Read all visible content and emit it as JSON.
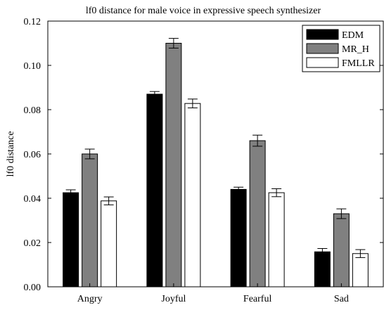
{
  "chart_data": {
    "type": "bar",
    "title": "lf0 distance for male voice in expressive speech synthesizer",
    "xlabel": "",
    "ylabel": "lf0 distance",
    "categories": [
      "Angry",
      "Joyful",
      "Fearful",
      "Sad"
    ],
    "ylim": [
      0,
      0.12
    ],
    "yticks": [
      "0.00",
      "0.02",
      "0.04",
      "0.06",
      "0.08",
      "0.10",
      "0.12"
    ],
    "grid": false,
    "legend_position": "top-right",
    "series": [
      {
        "name": "EDM",
        "color": "#000000",
        "values": [
          0.0425,
          0.087,
          0.044,
          0.0158
        ],
        "errors": [
          0.0013,
          0.0012,
          0.001,
          0.0015
        ]
      },
      {
        "name": "MR_H",
        "color": "#808080",
        "values": [
          0.06,
          0.11,
          0.066,
          0.033
        ],
        "errors": [
          0.0022,
          0.0022,
          0.0025,
          0.0022
        ]
      },
      {
        "name": "FMLLR",
        "color": "#ffffff",
        "values": [
          0.0388,
          0.0828,
          0.0425,
          0.015
        ],
        "errors": [
          0.0018,
          0.002,
          0.0018,
          0.0018
        ]
      }
    ]
  }
}
